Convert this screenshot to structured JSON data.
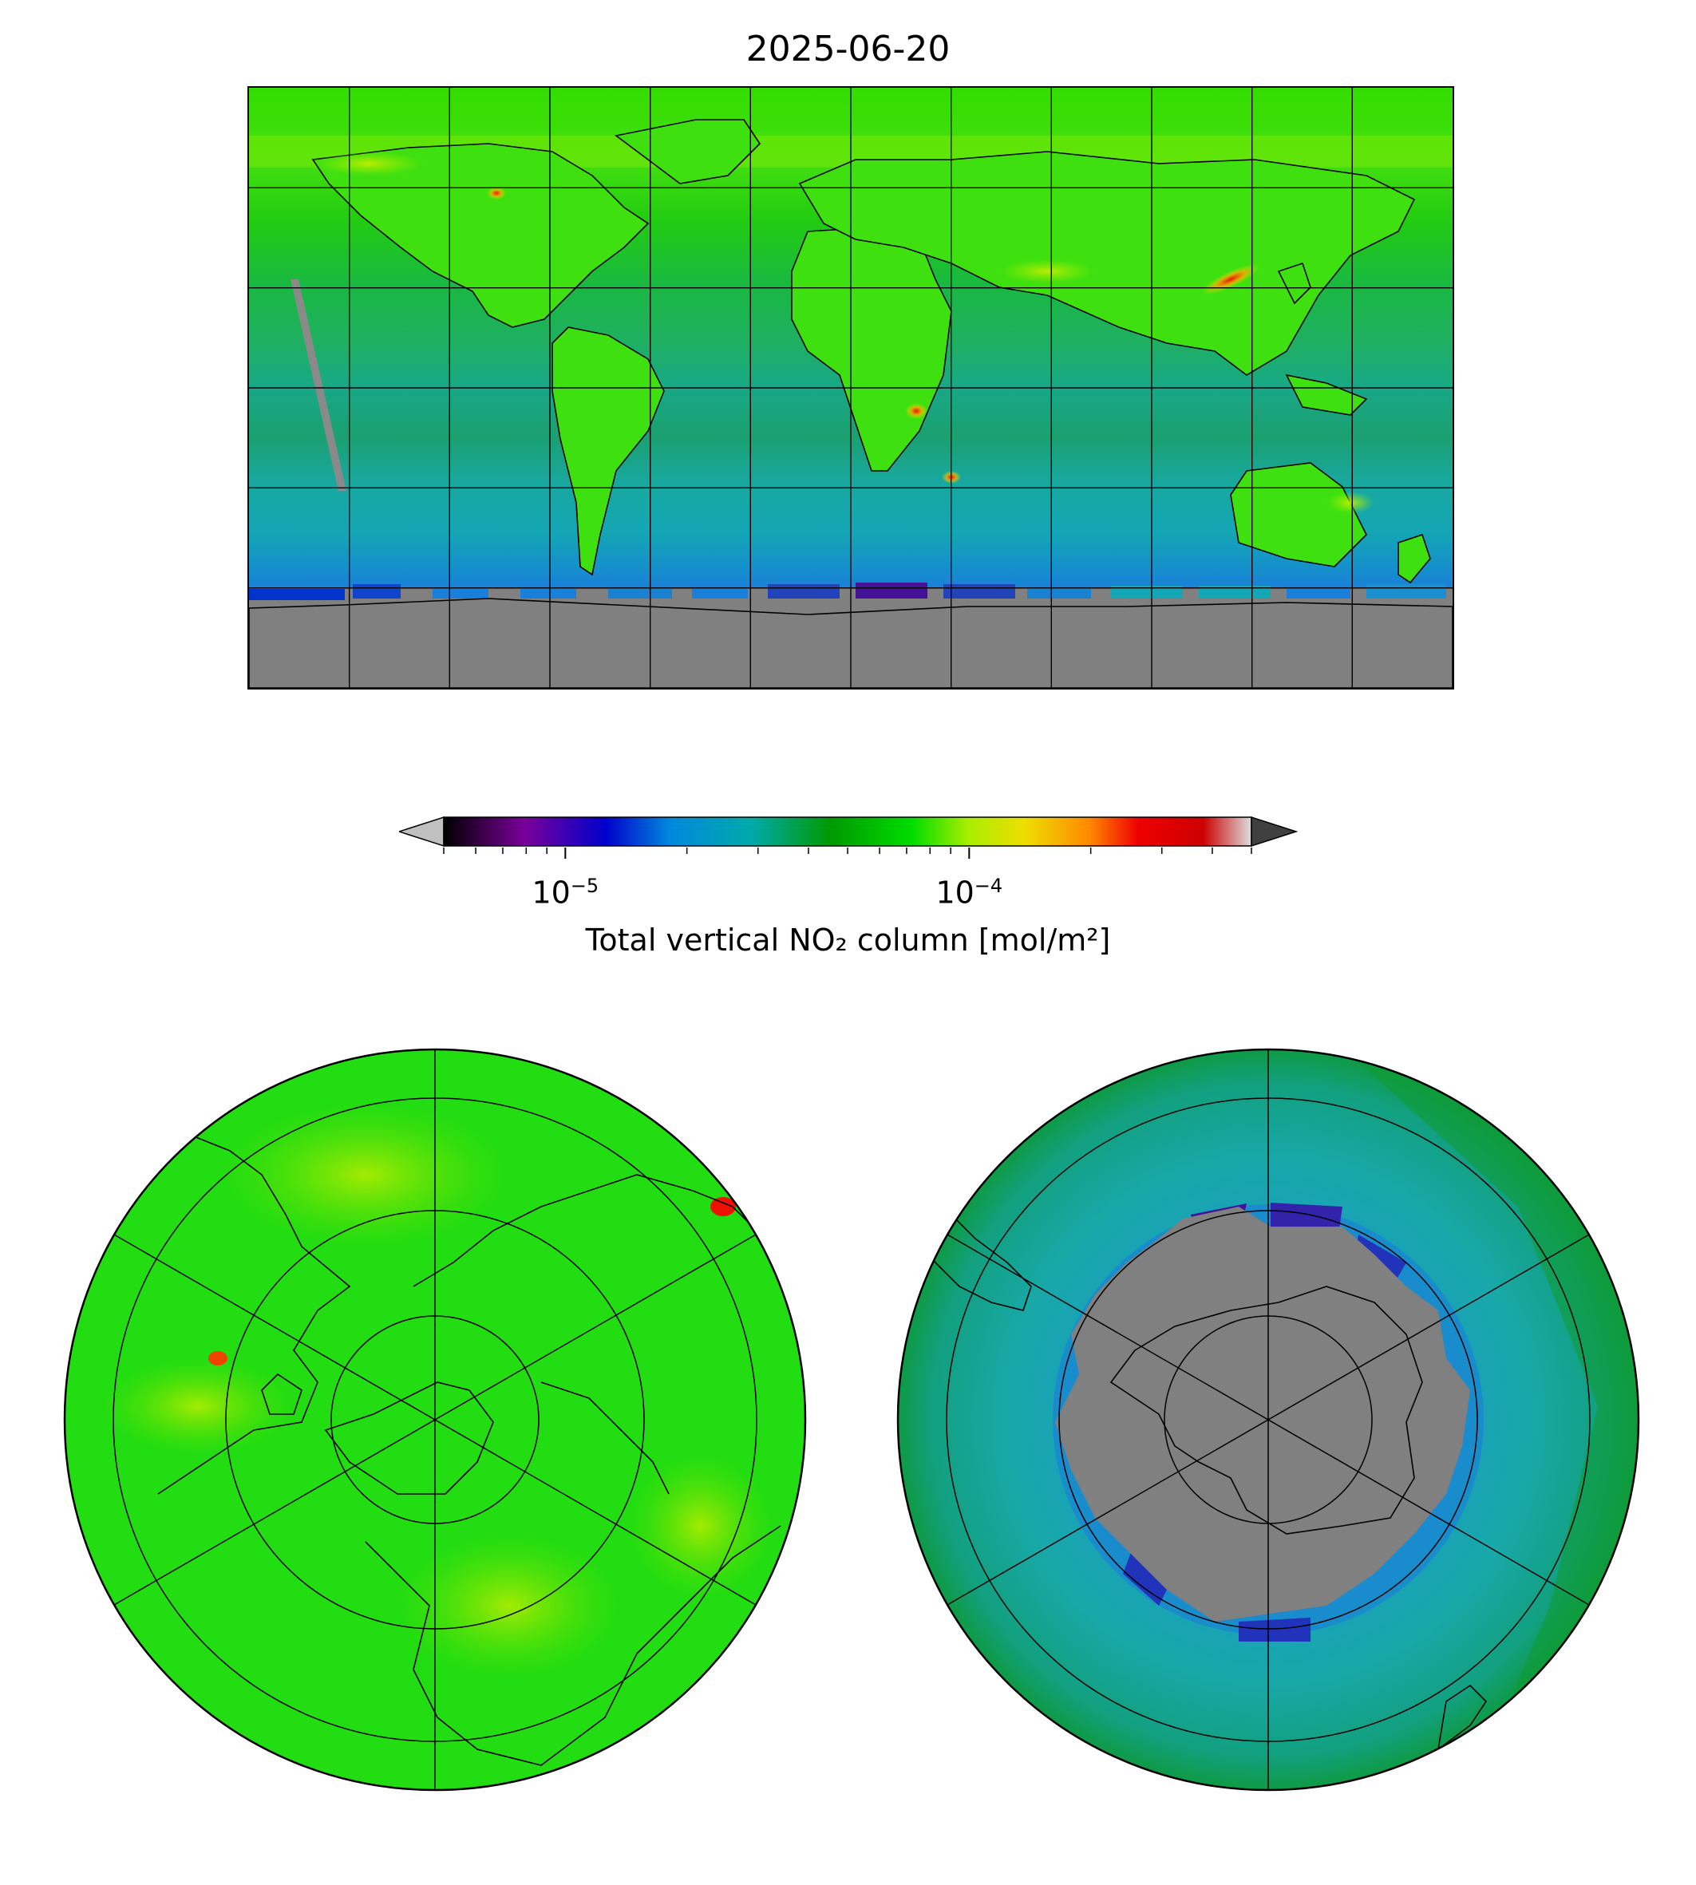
{
  "title": "2025-06-20",
  "colorbar": {
    "label": "Total vertical NO₂ column [mol/m²]",
    "scale": "log",
    "range": [
      5e-06,
      0.0005
    ],
    "tick_labels": [
      {
        "base": "10",
        "exp": "−5",
        "value": 1e-05
      },
      {
        "base": "10",
        "exp": "−4",
        "value": 0.0001
      }
    ],
    "colors": [
      "#000000",
      "#7a0099",
      "#0000cc",
      "#0088dd",
      "#00aaaa",
      "#009900",
      "#00dd00",
      "#aaee00",
      "#eedd00",
      "#ff8800",
      "#ee0000",
      "#cc0000",
      "#dddddd"
    ],
    "extend_low_color": "#c0c0c0",
    "extend_high_color": "#404040"
  },
  "maps": {
    "world": {
      "projection": "equirectangular",
      "lon_range": [
        -180,
        180
      ],
      "lat_range": [
        -90,
        90
      ],
      "graticule_step_deg": 30
    },
    "north_polar": {
      "projection": "north-polar-stereographic",
      "dominant_color": "#22dd11"
    },
    "south_polar": {
      "projection": "south-polar-stereographic",
      "dominant_color": "#1aa59a",
      "nodata_color": "#808080"
    }
  },
  "colors": {
    "land_fill_high": "#44ee11",
    "ocean_tropics": "#20b070",
    "southern_band": "#16a8a8",
    "nodata": "#808080",
    "hotspot": "#ee1100"
  }
}
